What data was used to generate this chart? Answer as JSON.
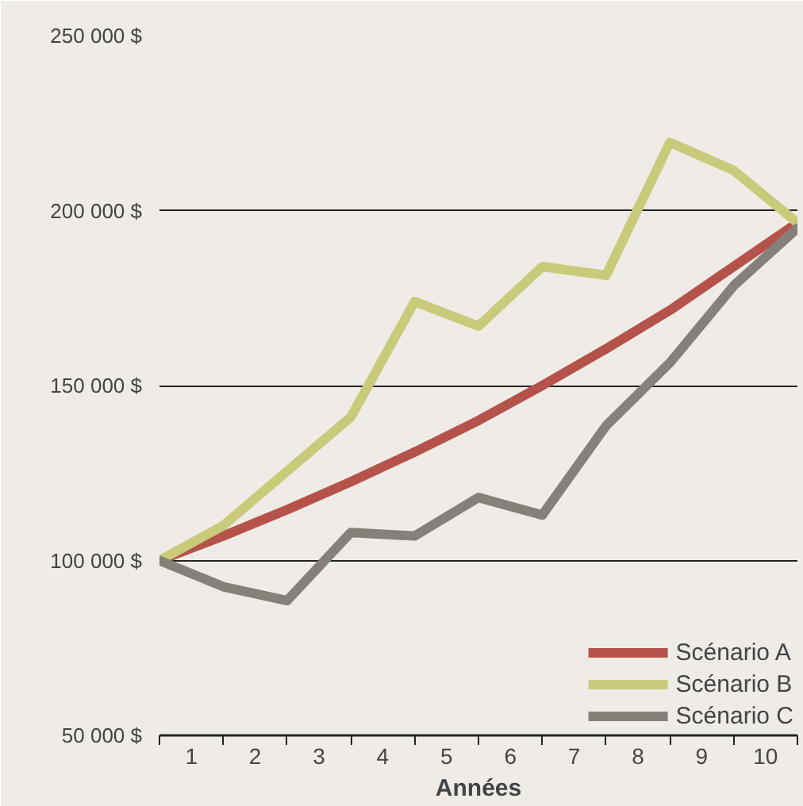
{
  "chart_data": {
    "type": "line",
    "xlabel": "Années",
    "x": [
      0,
      1,
      2,
      3,
      4,
      5,
      6,
      7,
      8,
      9,
      10
    ],
    "xlim": [
      0,
      10
    ],
    "xticks": [
      {
        "value": 0.5,
        "label": "1"
      },
      {
        "value": 1.5,
        "label": "2"
      },
      {
        "value": 2.5,
        "label": "3"
      },
      {
        "value": 3.5,
        "label": "4"
      },
      {
        "value": 4.5,
        "label": "5"
      },
      {
        "value": 5.5,
        "label": "6"
      },
      {
        "value": 6.5,
        "label": "7"
      },
      {
        "value": 7.5,
        "label": "8"
      },
      {
        "value": 8.5,
        "label": "9"
      },
      {
        "value": 9.5,
        "label": "10"
      }
    ],
    "ylim": [
      50000,
      250000
    ],
    "yticks": [
      {
        "value": 50000,
        "label": "50 000 $"
      },
      {
        "value": 100000,
        "label": "100 000 $"
      },
      {
        "value": 150000,
        "label": "150 000 $"
      },
      {
        "value": 200000,
        "label": "200 000 $"
      },
      {
        "value": 250000,
        "label": "250 000 $"
      }
    ],
    "grid": "y",
    "legend": "bottom right",
    "marker": "none",
    "line_style": "solid",
    "series": [
      {
        "name": "Scénario A",
        "color": "#b5534a",
        "values": [
          100000,
          107000,
          114500,
          122500,
          131000,
          140000,
          150000,
          160500,
          171500,
          184000,
          196500
        ]
      },
      {
        "name": "Scénario B",
        "color": "#c9cb7a",
        "values": [
          100000,
          110000,
          125500,
          141000,
          174000,
          167000,
          184000,
          181500,
          219500,
          211500,
          196500
        ]
      },
      {
        "name": "Scénario C",
        "color": "#858079",
        "values": [
          100000,
          92500,
          88500,
          108000,
          107000,
          118000,
          113000,
          138500,
          156500,
          178500,
          195000
        ]
      }
    ]
  }
}
